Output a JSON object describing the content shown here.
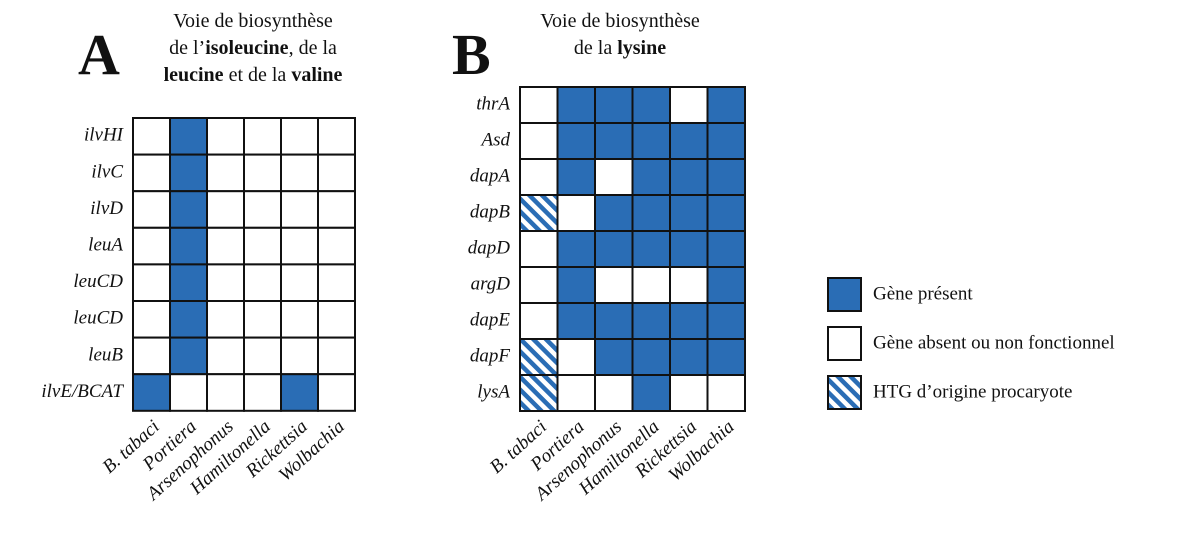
{
  "legend": [
    {
      "label": "Gène présent",
      "color": "#2a6db5"
    },
    {
      "label": "Gène absent ou non fonctionnel",
      "color": "#ffffff"
    },
    {
      "label": "HTG d’origine procaryote",
      "color": "#2a6db5",
      "hatched": true
    }
  ],
  "panels": [
    {
      "letter": "A",
      "title": [
        [
          {
            "text": "Voie de biosynthèse",
            "bold": false
          }
        ],
        [
          {
            "text": "de l’",
            "bold": false
          },
          {
            "text": "isoleucine",
            "bold": true
          },
          {
            "text": ", de la",
            "bold": false
          }
        ],
        [
          {
            "text": "leucine",
            "bold": true
          },
          {
            "text": " et de la ",
            "bold": false
          },
          {
            "text": "valine",
            "bold": true
          }
        ]
      ],
      "columns": [
        "B. tabaci",
        "Portiera",
        "Arsenophonus",
        "Hamiltonella",
        "Rickettsia",
        "Wolbachia"
      ],
      "rows": [
        {
          "gene": "ilvHI",
          "cells": [
            1,
            0,
            1,
            1,
            1,
            1
          ]
        },
        {
          "gene": "ilvC",
          "cells": [
            1,
            0,
            1,
            1,
            1,
            1
          ]
        },
        {
          "gene": "ilvD",
          "cells": [
            1,
            0,
            1,
            1,
            1,
            1
          ]
        },
        {
          "gene": "leuA",
          "cells": [
            1,
            0,
            1,
            1,
            1,
            1
          ]
        },
        {
          "gene": "leuCD",
          "cells": [
            1,
            0,
            1,
            1,
            1,
            1
          ]
        },
        {
          "gene": "leuCD",
          "cells": [
            1,
            0,
            1,
            1,
            1,
            1
          ]
        },
        {
          "gene": "leuB",
          "cells": [
            1,
            0,
            1,
            1,
            1,
            1
          ]
        },
        {
          "gene": "ilvE/BCAT",
          "cells": [
            0,
            1,
            1,
            1,
            0,
            1
          ]
        }
      ]
    },
    {
      "letter": "B",
      "title": [
        [
          {
            "text": "Voie de biosynthèse",
            "bold": false
          }
        ],
        [
          {
            "text": "de la ",
            "bold": false
          },
          {
            "text": "lysine",
            "bold": true
          }
        ]
      ],
      "columns": [
        "B. tabaci",
        "Portiera",
        "Arsenophonus",
        "Hamiltonella",
        "Rickettsia",
        "Wolbachia"
      ],
      "rows": [
        {
          "gene": "thrA",
          "cells": [
            1,
            0,
            0,
            0,
            1,
            0
          ]
        },
        {
          "gene": "Asd",
          "cells": [
            1,
            0,
            0,
            0,
            0,
            0
          ]
        },
        {
          "gene": "dapA",
          "cells": [
            1,
            0,
            1,
            0,
            0,
            0
          ]
        },
        {
          "gene": "dapB",
          "cells": [
            2,
            1,
            0,
            0,
            0,
            0
          ]
        },
        {
          "gene": "dapD",
          "cells": [
            1,
            0,
            0,
            0,
            0,
            0
          ]
        },
        {
          "gene": "argD",
          "cells": [
            1,
            0,
            1,
            1,
            1,
            0
          ]
        },
        {
          "gene": "dapE",
          "cells": [
            1,
            0,
            0,
            0,
            0,
            0
          ]
        },
        {
          "gene": "dapF",
          "cells": [
            2,
            1,
            0,
            0,
            0,
            0
          ]
        },
        {
          "gene": "lysA",
          "cells": [
            2,
            1,
            1,
            0,
            1,
            1
          ]
        }
      ]
    }
  ]
}
